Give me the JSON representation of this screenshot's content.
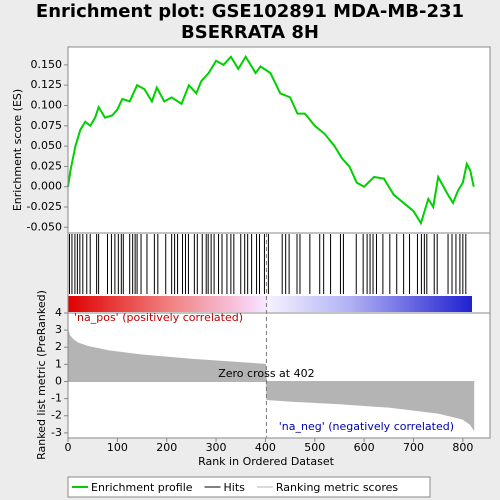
{
  "title": "Enrichment plot: GSE102891 MDA-MB-231",
  "subtitle": "BSERRATA 8H",
  "chart_data": [
    {
      "type": "line",
      "ylabel": "Enrichment score (ES)",
      "xlim": [
        0,
        855
      ],
      "ylim": [
        -0.057,
        0.172
      ],
      "yticks": [
        {
          "value": 0.15,
          "label": "0.150"
        },
        {
          "value": 0.125,
          "label": "0.125"
        },
        {
          "value": 0.1,
          "label": "0.100"
        },
        {
          "value": 0.075,
          "label": "0.075"
        },
        {
          "value": 0.05,
          "label": "0.050"
        },
        {
          "value": 0.025,
          "label": "0.025"
        },
        {
          "value": 0,
          "label": "0.000"
        },
        {
          "value": -0.025,
          "label": "-0.025"
        },
        {
          "value": -0.05,
          "label": "-0.050"
        }
      ],
      "x": [
        0,
        5,
        15,
        25,
        35,
        45,
        55,
        62,
        75,
        90,
        100,
        110,
        125,
        140,
        155,
        170,
        180,
        195,
        210,
        230,
        245,
        260,
        270,
        285,
        300,
        315,
        330,
        345,
        360,
        380,
        390,
        410,
        430,
        450,
        465,
        480,
        500,
        520,
        540,
        555,
        570,
        585,
        600,
        620,
        640,
        660,
        680,
        700,
        715,
        730,
        740,
        750,
        770,
        780,
        790,
        800,
        808,
        815,
        822
      ],
      "series": [
        {
          "name": "Enrichment profile",
          "color": "#00d000",
          "values": [
            0,
            0.02,
            0.05,
            0.07,
            0.08,
            0.075,
            0.085,
            0.098,
            0.085,
            0.088,
            0.095,
            0.108,
            0.105,
            0.125,
            0.12,
            0.105,
            0.122,
            0.105,
            0.11,
            0.102,
            0.125,
            0.115,
            0.13,
            0.14,
            0.155,
            0.15,
            0.16,
            0.145,
            0.16,
            0.14,
            0.148,
            0.14,
            0.115,
            0.11,
            0.09,
            0.09,
            0.075,
            0.065,
            0.05,
            0.035,
            0.025,
            0.005,
            0,
            0.012,
            0.01,
            -0.01,
            -0.02,
            -0.03,
            -0.045,
            -0.015,
            -0.025,
            0.012,
            -0.01,
            -0.02,
            -0.005,
            0.005,
            0.028,
            0.02,
            0
          ]
        }
      ]
    },
    {
      "type": "rug",
      "xlim": [
        0,
        855
      ],
      "series": [
        {
          "name": "Hits",
          "color": "#000000",
          "values": [
            3,
            8,
            14,
            19,
            24,
            30,
            38,
            45,
            58,
            62,
            80,
            88,
            95,
            102,
            108,
            112,
            125,
            131,
            136,
            140,
            148,
            160,
            175,
            182,
            198,
            210,
            216,
            222,
            232,
            238,
            244,
            256,
            262,
            272,
            280,
            284,
            290,
            296,
            305,
            312,
            322,
            330,
            336,
            350,
            358,
            364,
            372,
            382,
            388,
            398,
            406,
            434,
            441,
            448,
            464,
            470,
            490,
            510,
            518,
            532,
            552,
            558,
            584,
            598,
            606,
            612,
            618,
            625,
            638,
            652,
            666,
            680,
            692,
            708,
            716,
            722,
            727,
            742,
            748,
            770,
            778,
            786,
            794,
            800,
            806
          ]
        }
      ]
    },
    {
      "type": "area",
      "ylabel": "Ranked list metric (PreRanked)",
      "xlabel": "Rank in Ordered Dataset",
      "xlim": [
        0,
        855
      ],
      "ylim": [
        -3.3,
        4
      ],
      "xticks": [
        0,
        100,
        200,
        300,
        400,
        500,
        600,
        700,
        800
      ],
      "yticks": [
        4,
        3,
        2,
        1,
        0,
        -1,
        -2,
        -3
      ],
      "x": [
        0,
        3,
        10,
        20,
        40,
        80,
        150,
        250,
        350,
        400,
        402,
        403,
        450,
        550,
        650,
        750,
        800,
        815,
        822
      ],
      "series": [
        {
          "name": "Ranking metric scores",
          "color": "#b4b4b4",
          "values": [
            3.0,
            2.7,
            2.45,
            2.25,
            2.05,
            1.8,
            1.55,
            1.3,
            1.1,
            1.0,
            0,
            -1.05,
            -1.15,
            -1.3,
            -1.5,
            -1.85,
            -2.2,
            -2.5,
            -2.8
          ]
        }
      ],
      "zero_cross": {
        "value": 402,
        "label": "Zero cross at 402"
      },
      "annotations": [
        "'na_pos' (positively correlated)",
        "'na_neg' (negatively correlated)"
      ]
    }
  ]
}
